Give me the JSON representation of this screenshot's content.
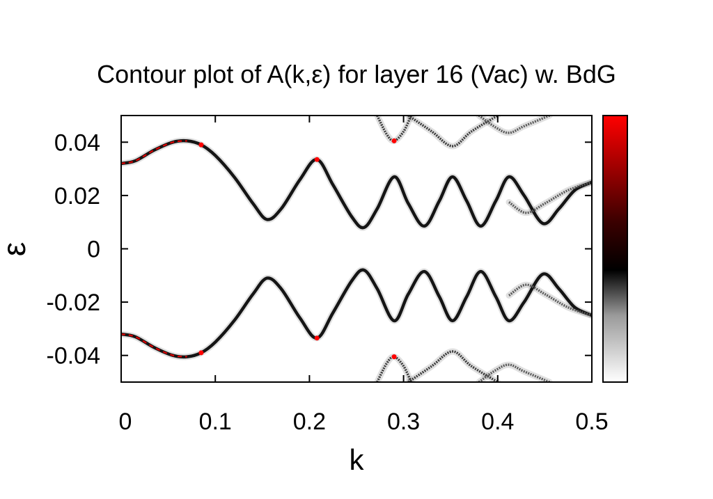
{
  "chart_data": {
    "type": "heatmap",
    "title": "Contour plot of A(k,ε)  for layer 16 (Vac) w. BdG",
    "xlabel": "k",
    "ylabel": "ε",
    "xlim": [
      0,
      0.5
    ],
    "ylim": [
      -0.05,
      0.05
    ],
    "x_ticks": [
      "0",
      "0.1",
      "0.2",
      "0.3",
      "0.4",
      "0.5"
    ],
    "y_ticks": [
      "0.04",
      "0.02",
      "0",
      "-0.02",
      "-0.04"
    ],
    "colorbar": {
      "range": [
        0,
        0.5
      ],
      "colors": [
        "#ffffff",
        "#000000",
        "#ff0000"
      ],
      "ticks_shown": false
    },
    "bands": [
      {
        "k": [
          0,
          0.015,
          0.035,
          0.055,
          0.07,
          0.085,
          0.1,
          0.12,
          0.14,
          0.155,
          0.17,
          0.19,
          0.208,
          0.225,
          0.245,
          0.258,
          0.272,
          0.29,
          0.305,
          0.322,
          0.338,
          0.352,
          0.367,
          0.382,
          0.398,
          0.412,
          0.428,
          0.448,
          0.465,
          0.482,
          0.5
        ],
        "eps": [
          0.032,
          0.033,
          0.037,
          0.04,
          0.0405,
          0.039,
          0.035,
          0.027,
          0.017,
          0.011,
          0.015,
          0.026,
          0.0335,
          0.024,
          0.012,
          0.008,
          0.015,
          0.027,
          0.017,
          0.0085,
          0.018,
          0.027,
          0.018,
          0.0085,
          0.018,
          0.027,
          0.02,
          0.0095,
          0.015,
          0.022,
          0.025
        ]
      },
      {
        "k": [
          0.272,
          0.282,
          0.29,
          0.3,
          0.308
        ],
        "eps": [
          0.05,
          0.043,
          0.0405,
          0.044,
          0.05
        ]
      },
      {
        "k": [
          0.305,
          0.33,
          0.352,
          0.372,
          0.4
        ],
        "eps": [
          0.05,
          0.044,
          0.0385,
          0.044,
          0.05
        ]
      },
      {
        "k": [
          0.38,
          0.398,
          0.412,
          0.428,
          0.455
        ],
        "eps": [
          0.05,
          0.0455,
          0.0435,
          0.046,
          0.05
        ]
      },
      {
        "k": [
          0.412,
          0.43,
          0.45,
          0.475,
          0.5
        ],
        "eps": [
          0.0175,
          0.0135,
          0.017,
          0.022,
          0.025
        ]
      }
    ]
  }
}
